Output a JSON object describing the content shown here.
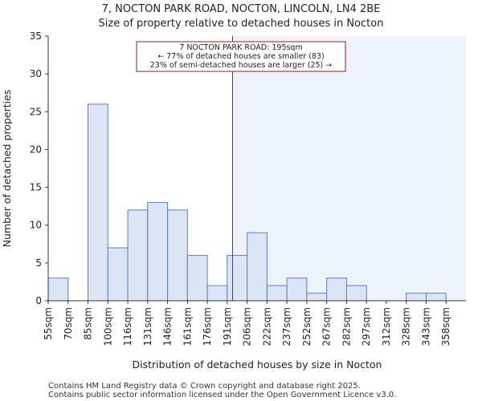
{
  "title_line1": "7, NOCTON PARK ROAD, NOCTON, LINCOLN, LN4 2BE",
  "title_line2": "Size of property relative to detached houses in Nocton",
  "annotation": {
    "line1": "7 NOCTON PARK ROAD: 195sqm",
    "line2": "← 77% of detached houses are smaller (83)",
    "line3": "23% of semi-detached houses are larger (25) →"
  },
  "footer": {
    "line1": "Contains HM Land Registry data © Crown copyright and database right 2025.",
    "line2": "Contains public sector information licensed under the Open Government Licence v3.0."
  },
  "colors": {
    "bar_fill": "#dbe5f6",
    "bar_stroke": "#5b7fc4",
    "highlight_bg": "#eef2fb",
    "marker_line": "#a11b1b",
    "annotation_border": "#a11b1b"
  },
  "chart_data": {
    "type": "bar",
    "title": "7, NOCTON PARK ROAD, NOCTON, LINCOLN, LN4 2BE — Size of property relative to detached houses in Nocton",
    "xlabel": "Distribution of detached houses by size in Nocton",
    "ylabel": "Number of detached properties",
    "categories": [
      "55sqm",
      "70sqm",
      "85sqm",
      "100sqm",
      "116sqm",
      "131sqm",
      "146sqm",
      "161sqm",
      "176sqm",
      "191sqm",
      "206sqm",
      "222sqm",
      "237sqm",
      "252sqm",
      "267sqm",
      "282sqm",
      "297sqm",
      "312sqm",
      "328sqm",
      "343sqm",
      "358sqm"
    ],
    "values": [
      3,
      0,
      26,
      7,
      12,
      13,
      12,
      6,
      2,
      6,
      9,
      2,
      3,
      1,
      3,
      2,
      0,
      0,
      1,
      1,
      0
    ],
    "yticks": [
      0,
      5,
      10,
      15,
      20,
      25,
      30,
      35
    ],
    "ylim": [
      0,
      35
    ],
    "marker_value_sqm": 195,
    "grid": false
  }
}
